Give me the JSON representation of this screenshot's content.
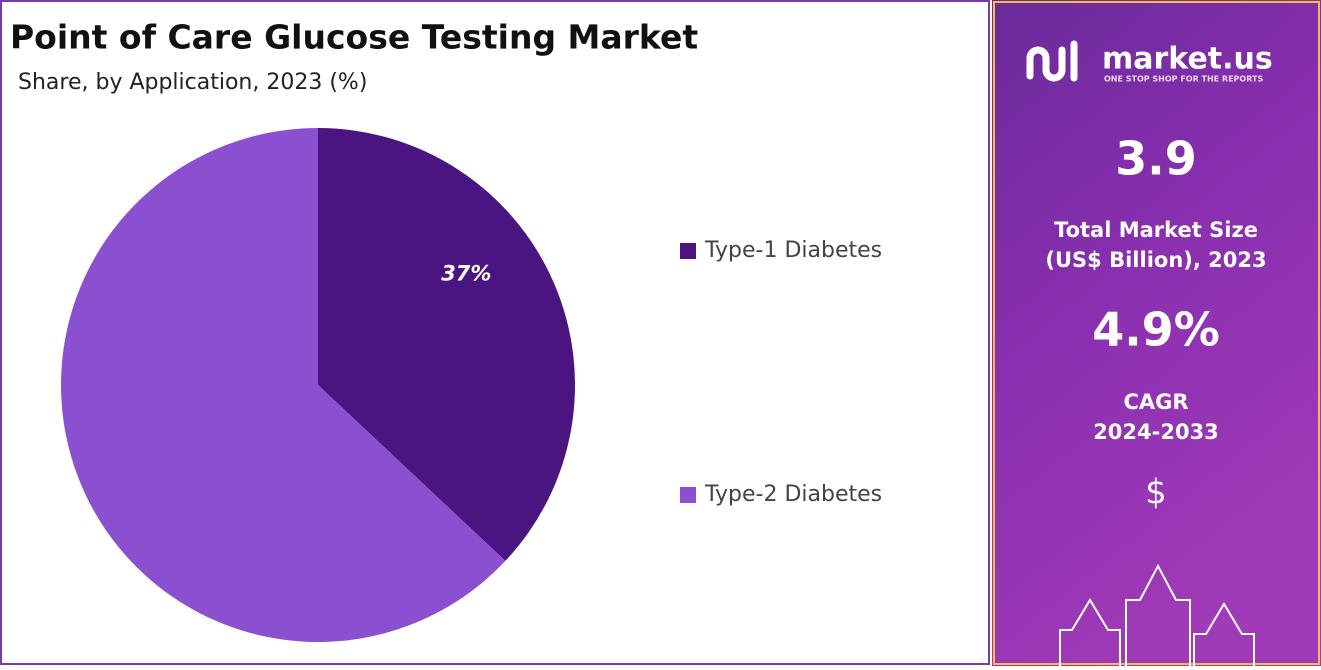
{
  "chart_data": {
    "type": "pie",
    "title": "Point of Care Glucose Testing Market",
    "subtitle": "Share, by Application, 2023 (%)",
    "categories": [
      "Type-1 Diabetes",
      "Type-2 Diabetes"
    ],
    "values": [
      37,
      63
    ],
    "value_labels": [
      "37%",
      null
    ],
    "colors": [
      "#4a1580",
      "#8a50d0"
    ],
    "legend": "right"
  },
  "side_panel": {
    "logo": "market.us",
    "tagline": "ONE STOP SHOP FOR THE REPORTS",
    "market_size": "3.9",
    "market_size_label_1": "Total Market Size",
    "market_size_label_2": "(US$ Billion), 2023",
    "cagr": "4.9%",
    "cagr_label_1": "CAGR",
    "cagr_label_2": "2024-2033",
    "currency_icon": "$"
  }
}
